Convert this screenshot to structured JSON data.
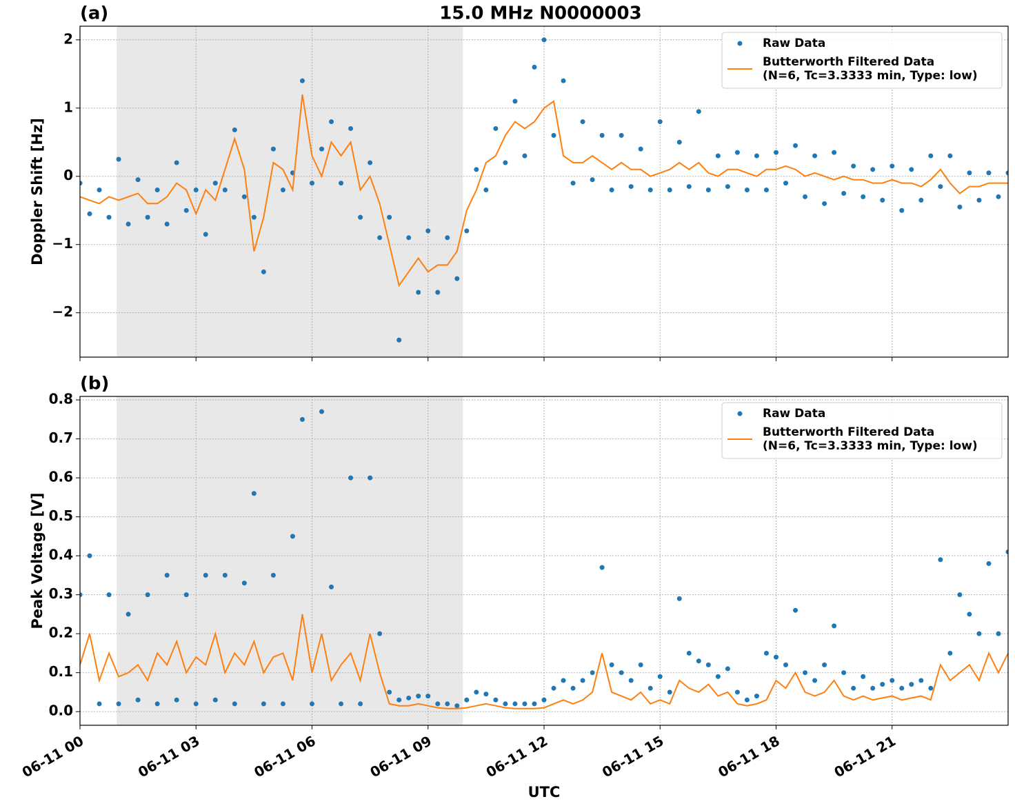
{
  "chart_data": [
    {
      "type": "line",
      "panel_label": "(a)",
      "title": "15.0 MHz N0000003",
      "ylabel": "Doppler Shift [Hz]",
      "xlim": [
        0,
        24
      ],
      "ylim": [
        -2.65,
        2.2
      ],
      "yticks": [
        {
          "value": -2,
          "label": "−2"
        },
        {
          "value": -1,
          "label": "−1"
        },
        0,
        1,
        2
      ],
      "grid": true,
      "legend": "upper right",
      "shaded_span": [
        0.95,
        9.9
      ],
      "x": [
        0,
        0.25,
        0.5,
        0.75,
        1,
        1.25,
        1.5,
        1.75,
        2,
        2.25,
        2.5,
        2.75,
        3,
        3.25,
        3.5,
        3.75,
        4,
        4.25,
        4.5,
        4.75,
        5,
        5.25,
        5.5,
        5.75,
        6,
        6.25,
        6.5,
        6.75,
        7,
        7.25,
        7.5,
        7.75,
        8,
        8.25,
        8.5,
        8.75,
        9,
        9.25,
        9.5,
        9.75,
        10,
        10.25,
        10.5,
        10.75,
        11,
        11.25,
        11.5,
        11.75,
        12,
        12.25,
        12.5,
        12.75,
        13,
        13.25,
        13.5,
        13.75,
        14,
        14.25,
        14.5,
        14.75,
        15,
        15.25,
        15.5,
        15.75,
        16,
        16.25,
        16.5,
        16.75,
        17,
        17.25,
        17.5,
        17.75,
        18,
        18.25,
        18.5,
        18.75,
        19,
        19.25,
        19.5,
        19.75,
        20,
        20.25,
        20.5,
        20.75,
        21,
        21.25,
        21.5,
        21.75,
        22,
        22.25,
        22.5,
        22.75,
        23,
        23.25,
        23.5,
        23.75,
        24
      ],
      "series": [
        {
          "name": "Raw Data",
          "mode": "markers",
          "color": "#1f77b4",
          "values": [
            -0.1,
            -0.55,
            -0.2,
            -0.6,
            0.25,
            -0.7,
            -0.05,
            -0.6,
            -0.2,
            -0.7,
            0.2,
            -0.5,
            -0.2,
            -0.85,
            -0.1,
            -0.2,
            0.68,
            -0.3,
            -0.6,
            -1.4,
            0.4,
            -0.2,
            0.05,
            1.4,
            -0.1,
            0.4,
            0.8,
            -0.1,
            0.7,
            -0.6,
            0.2,
            -0.9,
            -0.6,
            -2.4,
            -0.9,
            -1.7,
            -0.8,
            -1.7,
            -0.9,
            -1.5,
            -0.8,
            0.1,
            -0.2,
            0.7,
            0.2,
            1.1,
            0.3,
            1.6,
            2.0,
            0.6,
            1.4,
            -0.1,
            0.8,
            -0.05,
            0.6,
            -0.2,
            0.6,
            -0.15,
            0.4,
            -0.2,
            0.8,
            -0.2,
            0.5,
            -0.15,
            0.95,
            -0.2,
            0.3,
            -0.15,
            0.35,
            -0.2,
            0.3,
            -0.2,
            0.35,
            -0.1,
            0.45,
            -0.3,
            0.3,
            -0.4,
            0.35,
            -0.25,
            0.15,
            -0.3,
            0.1,
            -0.35,
            0.15,
            -0.5,
            0.1,
            -0.35,
            0.3,
            -0.15,
            0.3,
            -0.45,
            0.05,
            -0.35,
            0.05,
            -0.3,
            0.05
          ]
        },
        {
          "name": "Butterworth Filtered Data\n(N=6, Tc=3.3333 min, Type: low)",
          "mode": "line",
          "color": "#ff7f0e",
          "values": [
            -0.3,
            -0.35,
            -0.4,
            -0.3,
            -0.35,
            -0.3,
            -0.25,
            -0.4,
            -0.4,
            -0.3,
            -0.1,
            -0.2,
            -0.55,
            -0.2,
            -0.35,
            0.1,
            0.55,
            0.1,
            -1.1,
            -0.6,
            0.2,
            0.1,
            -0.2,
            1.2,
            0.3,
            0.0,
            0.5,
            0.3,
            0.5,
            -0.2,
            0.0,
            -0.4,
            -1.0,
            -1.6,
            -1.4,
            -1.2,
            -1.4,
            -1.3,
            -1.3,
            -1.1,
            -0.5,
            -0.2,
            0.2,
            0.3,
            0.6,
            0.8,
            0.7,
            0.8,
            1.0,
            1.1,
            0.3,
            0.2,
            0.2,
            0.3,
            0.2,
            0.1,
            0.2,
            0.1,
            0.1,
            0.0,
            0.05,
            0.1,
            0.2,
            0.1,
            0.2,
            0.05,
            0.0,
            0.1,
            0.1,
            0.05,
            0.0,
            0.1,
            0.1,
            0.15,
            0.1,
            0.0,
            0.05,
            0.0,
            -0.05,
            0.0,
            -0.05,
            -0.05,
            -0.1,
            -0.1,
            -0.05,
            -0.1,
            -0.1,
            -0.15,
            -0.05,
            0.1,
            -0.1,
            -0.25,
            -0.15,
            -0.15,
            -0.1,
            -0.1,
            -0.1
          ]
        }
      ]
    },
    {
      "type": "line",
      "panel_label": "(b)",
      "ylabel": "Peak Voltage [V]",
      "xlabel": "UTC",
      "xlim": [
        0,
        24
      ],
      "ylim": [
        -0.035,
        0.809
      ],
      "xticks": [
        {
          "value": 0,
          "label": "06-11 00"
        },
        {
          "value": 3,
          "label": "06-11 03"
        },
        {
          "value": 6,
          "label": "06-11 06"
        },
        {
          "value": 9,
          "label": "06-11 09"
        },
        {
          "value": 12,
          "label": "06-11 12"
        },
        {
          "value": 15,
          "label": "06-11 15"
        },
        {
          "value": 18,
          "label": "06-11 18"
        },
        {
          "value": 21,
          "label": "06-11 21"
        }
      ],
      "yticks": [
        {
          "value": 0,
          "label": "0.0"
        },
        0.1,
        0.2,
        0.3,
        0.4,
        0.5,
        0.6,
        0.7,
        0.8
      ],
      "grid": true,
      "legend": "upper right",
      "shaded_span": [
        0.95,
        9.9
      ],
      "x": [
        0,
        0.25,
        0.5,
        0.75,
        1,
        1.25,
        1.5,
        1.75,
        2,
        2.25,
        2.5,
        2.75,
        3,
        3.25,
        3.5,
        3.75,
        4,
        4.25,
        4.5,
        4.75,
        5,
        5.25,
        5.5,
        5.75,
        6,
        6.25,
        6.5,
        6.75,
        7,
        7.25,
        7.5,
        7.75,
        8,
        8.25,
        8.5,
        8.75,
        9,
        9.25,
        9.5,
        9.75,
        10,
        10.25,
        10.5,
        10.75,
        11,
        11.25,
        11.5,
        11.75,
        12,
        12.25,
        12.5,
        12.75,
        13,
        13.25,
        13.5,
        13.75,
        14,
        14.25,
        14.5,
        14.75,
        15,
        15.25,
        15.5,
        15.75,
        16,
        16.25,
        16.5,
        16.75,
        17,
        17.25,
        17.5,
        17.75,
        18,
        18.25,
        18.5,
        18.75,
        19,
        19.25,
        19.5,
        19.75,
        20,
        20.25,
        20.5,
        20.75,
        21,
        21.25,
        21.5,
        21.75,
        22,
        22.25,
        22.5,
        22.75,
        23,
        23.25,
        23.5,
        23.75,
        24
      ],
      "series": [
        {
          "name": "Raw Data",
          "mode": "markers",
          "color": "#1f77b4",
          "values": [
            0.3,
            0.4,
            0.02,
            0.3,
            0.02,
            0.25,
            0.03,
            0.3,
            0.02,
            0.35,
            0.03,
            0.3,
            0.02,
            0.35,
            0.03,
            0.35,
            0.02,
            0.33,
            0.56,
            0.02,
            0.35,
            0.02,
            0.45,
            0.75,
            0.02,
            0.77,
            0.32,
            0.02,
            0.6,
            0.02,
            0.6,
            0.2,
            0.05,
            0.03,
            0.035,
            0.04,
            0.04,
            0.02,
            0.02,
            0.015,
            0.03,
            0.05,
            0.045,
            0.03,
            0.02,
            0.02,
            0.02,
            0.02,
            0.03,
            0.06,
            0.08,
            0.06,
            0.08,
            0.1,
            0.37,
            0.12,
            0.1,
            0.08,
            0.12,
            0.06,
            0.09,
            0.05,
            0.29,
            0.15,
            0.13,
            0.12,
            0.09,
            0.11,
            0.05,
            0.03,
            0.04,
            0.15,
            0.14,
            0.12,
            0.26,
            0.1,
            0.08,
            0.12,
            0.22,
            0.1,
            0.06,
            0.09,
            0.06,
            0.07,
            0.08,
            0.06,
            0.07,
            0.08,
            0.06,
            0.39,
            0.15,
            0.3,
            0.25,
            0.2,
            0.38,
            0.2,
            0.41
          ]
        },
        {
          "name": "Butterworth Filtered Data\n(N=6, Tc=3.3333 min, Type: low)",
          "mode": "line",
          "color": "#ff7f0e",
          "values": [
            0.12,
            0.2,
            0.08,
            0.15,
            0.09,
            0.1,
            0.12,
            0.08,
            0.15,
            0.12,
            0.18,
            0.1,
            0.14,
            0.12,
            0.2,
            0.1,
            0.15,
            0.12,
            0.18,
            0.1,
            0.14,
            0.15,
            0.08,
            0.25,
            0.1,
            0.2,
            0.08,
            0.12,
            0.15,
            0.08,
            0.2,
            0.1,
            0.02,
            0.015,
            0.015,
            0.02,
            0.015,
            0.01,
            0.008,
            0.008,
            0.01,
            0.015,
            0.02,
            0.015,
            0.01,
            0.008,
            0.008,
            0.008,
            0.01,
            0.02,
            0.03,
            0.02,
            0.03,
            0.05,
            0.15,
            0.05,
            0.04,
            0.03,
            0.05,
            0.02,
            0.03,
            0.02,
            0.08,
            0.06,
            0.05,
            0.07,
            0.04,
            0.05,
            0.02,
            0.015,
            0.02,
            0.03,
            0.08,
            0.06,
            0.1,
            0.05,
            0.04,
            0.05,
            0.08,
            0.04,
            0.03,
            0.04,
            0.03,
            0.035,
            0.04,
            0.03,
            0.035,
            0.04,
            0.03,
            0.12,
            0.08,
            0.1,
            0.12,
            0.08,
            0.15,
            0.1,
            0.15
          ]
        }
      ]
    }
  ]
}
